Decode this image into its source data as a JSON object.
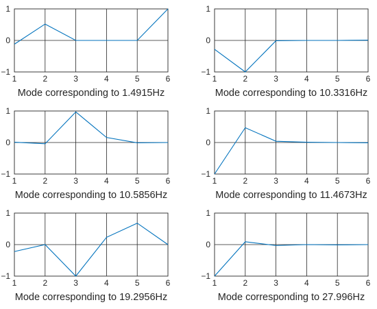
{
  "chart_data": [
    {
      "type": "line",
      "title": "",
      "xlabel": "Mode corresponding to 1.4915Hz",
      "ylabel": "",
      "x": [
        1,
        2,
        3,
        4,
        5,
        6
      ],
      "xlim": [
        1,
        6
      ],
      "ylim": [
        -1,
        1
      ],
      "xticks": [
        "1",
        "2",
        "3",
        "4",
        "5",
        "6"
      ],
      "yticks": [
        "-1",
        "0",
        "1"
      ],
      "grid": true,
      "series": [
        {
          "values": [
            -0.12,
            0.52,
            0.0,
            0.0,
            0.0,
            1.0
          ]
        }
      ]
    },
    {
      "type": "line",
      "title": "",
      "xlabel": "Mode corresponding to 10.3316Hz",
      "ylabel": "",
      "x": [
        1,
        2,
        3,
        4,
        5,
        6
      ],
      "xlim": [
        1,
        6
      ],
      "ylim": [
        -1,
        1
      ],
      "xticks": [
        "1",
        "2",
        "3",
        "4",
        "5",
        "6"
      ],
      "yticks": [
        "-1",
        "0",
        "1"
      ],
      "grid": true,
      "series": [
        {
          "values": [
            -0.28,
            -1.0,
            -0.01,
            0.0,
            0.0,
            0.01
          ]
        }
      ]
    },
    {
      "type": "line",
      "title": "",
      "xlabel": "Mode corresponding to 10.5856Hz",
      "ylabel": "",
      "x": [
        1,
        2,
        3,
        4,
        5,
        6
      ],
      "xlim": [
        1,
        6
      ],
      "ylim": [
        -1,
        1
      ],
      "xticks": [
        "1",
        "2",
        "3",
        "4",
        "5",
        "6"
      ],
      "yticks": [
        "-1",
        "0",
        "1"
      ],
      "grid": true,
      "series": [
        {
          "values": [
            0.01,
            -0.04,
            0.97,
            0.16,
            -0.01,
            0.0
          ]
        }
      ]
    },
    {
      "type": "line",
      "title": "",
      "xlabel": "Mode corresponding to 11.4673Hz",
      "ylabel": "",
      "x": [
        1,
        2,
        3,
        4,
        5,
        6
      ],
      "xlim": [
        1,
        6
      ],
      "ylim": [
        -1,
        1
      ],
      "xticks": [
        "1",
        "2",
        "3",
        "4",
        "5",
        "6"
      ],
      "yticks": [
        "-1",
        "0",
        "1"
      ],
      "grid": true,
      "series": [
        {
          "values": [
            -1.0,
            0.47,
            0.04,
            0.01,
            0.0,
            -0.01
          ]
        }
      ]
    },
    {
      "type": "line",
      "title": "",
      "xlabel": "Mode corresponding to 19.2956Hz",
      "ylabel": "",
      "x": [
        1,
        2,
        3,
        4,
        5,
        6
      ],
      "xlim": [
        1,
        6
      ],
      "ylim": [
        -1,
        1
      ],
      "xticks": [
        "1",
        "2",
        "3",
        "4",
        "5",
        "6"
      ],
      "yticks": [
        "-1",
        "0",
        "1"
      ],
      "grid": true,
      "series": [
        {
          "values": [
            -0.22,
            0.0,
            -1.0,
            0.23,
            0.68,
            0.0
          ]
        }
      ]
    },
    {
      "type": "line",
      "title": "",
      "xlabel": "Mode corresponding to 27.996Hz",
      "ylabel": "",
      "x": [
        1,
        2,
        3,
        4,
        5,
        6
      ],
      "xlim": [
        1,
        6
      ],
      "ylim": [
        -1,
        1
      ],
      "xticks": [
        "1",
        "2",
        "3",
        "4",
        "5",
        "6"
      ],
      "yticks": [
        "-1",
        "0",
        "1"
      ],
      "grid": true,
      "series": [
        {
          "values": [
            -1.0,
            0.09,
            -0.03,
            0.0,
            -0.01,
            0.0
          ]
        }
      ]
    }
  ],
  "colors": {
    "line": "#0072BD",
    "axes": "#262626",
    "grid": "#262626",
    "background": "#ffffff"
  }
}
